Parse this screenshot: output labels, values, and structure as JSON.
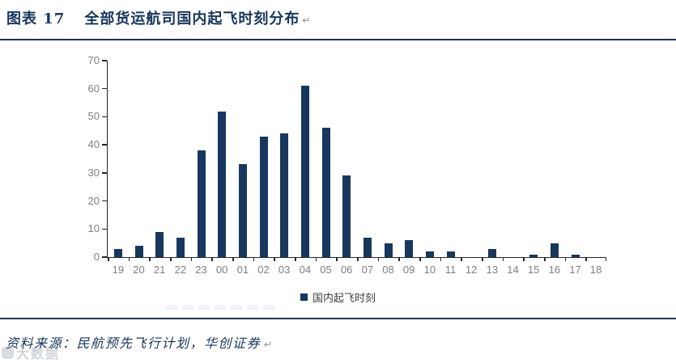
{
  "title": {
    "label": "图表 17",
    "text": "全部货运航司国内起飞时刻分布",
    "paragraph_mark": "↵"
  },
  "chart_data": {
    "type": "bar",
    "title": "全部货运航司国内起飞时刻分布",
    "categories": [
      "19",
      "20",
      "21",
      "22",
      "23",
      "00",
      "01",
      "02",
      "03",
      "04",
      "05",
      "06",
      "07",
      "08",
      "09",
      "10",
      "11",
      "12",
      "13",
      "14",
      "15",
      "16",
      "17",
      "18"
    ],
    "values": [
      3,
      4,
      9,
      7,
      38,
      52,
      33,
      43,
      44,
      61,
      46,
      29,
      7,
      5,
      6,
      2,
      2,
      0,
      3,
      0,
      1,
      5,
      1,
      0
    ],
    "series_name": "国内起飞时刻",
    "xlabel": "",
    "ylabel": "",
    "ylim": [
      0,
      70
    ],
    "yticks": [
      0,
      10,
      20,
      30,
      40,
      50,
      60,
      70
    ],
    "grid": false,
    "legend_position": "bottom",
    "bar_color": "#17375E",
    "axis_tick_label_color": "#7F7F7F"
  },
  "legend": {
    "label": "国内起飞时刻",
    "swatch_color": "#17375E"
  },
  "footer": {
    "source_text": "资料来源：民航预先飞行计划，华创证券",
    "paragraph_mark": "↵"
  },
  "watermark": {
    "text": "大数据"
  },
  "colors": {
    "accent_navy": "#17375E",
    "rule_navy": "#17365D",
    "axis_gray": "#7F7F7F"
  }
}
